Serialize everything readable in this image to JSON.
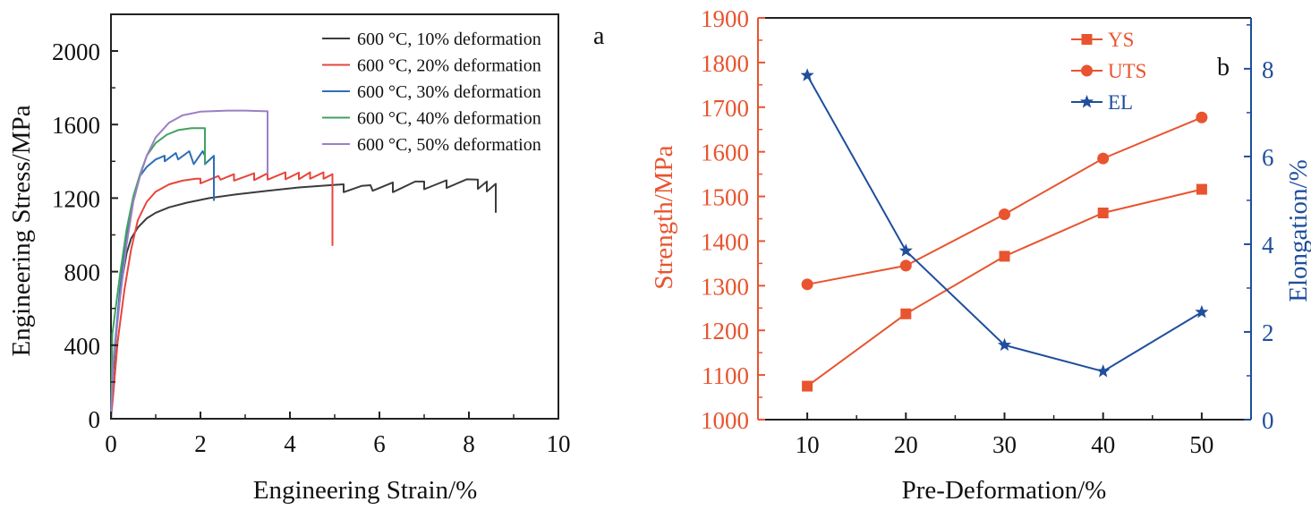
{
  "chart_data": [
    {
      "type": "line",
      "panel": "a",
      "title": "",
      "xlabel": "Engineering Strain/%",
      "ylabel": "Engineering Stress/MPa",
      "xlim": [
        0,
        10
      ],
      "ylim": [
        0,
        2200
      ],
      "xticks": [
        0,
        2,
        4,
        6,
        8,
        10
      ],
      "yticks": [
        0,
        400,
        800,
        1200,
        1600,
        2000
      ],
      "grid": false,
      "legend_position": "top-right",
      "series": [
        {
          "name": "600 °C, 10% deformation",
          "color": "#3c3c3c",
          "points": [
            [
              0,
              0
            ],
            [
              0.05,
              250
            ],
            [
              0.15,
              550
            ],
            [
              0.25,
              760
            ],
            [
              0.35,
              900
            ],
            [
              0.45,
              980
            ],
            [
              0.6,
              1040
            ],
            [
              0.8,
              1090
            ],
            [
              1.0,
              1120
            ],
            [
              1.3,
              1150
            ],
            [
              1.7,
              1175
            ],
            [
              2.2,
              1200
            ],
            [
              2.8,
              1220
            ],
            [
              3.5,
              1240
            ],
            [
              4.2,
              1258
            ],
            [
              5.0,
              1272
            ],
            [
              5.2,
              1275
            ],
            [
              5.2,
              1232
            ],
            [
              5.6,
              1266
            ],
            [
              5.8,
              1270
            ],
            [
              5.85,
              1240
            ],
            [
              6.3,
              1285
            ],
            [
              6.3,
              1232
            ],
            [
              6.8,
              1290
            ],
            [
              7.0,
              1290
            ],
            [
              7.0,
              1248
            ],
            [
              7.5,
              1297
            ],
            [
              7.5,
              1255
            ],
            [
              7.95,
              1302
            ],
            [
              8.2,
              1300
            ],
            [
              8.2,
              1250
            ],
            [
              8.4,
              1290
            ],
            [
              8.4,
              1236
            ],
            [
              8.6,
              1278
            ],
            [
              8.6,
              1120
            ]
          ]
        },
        {
          "name": "600 °C, 20% deformation",
          "color": "#e8453c",
          "points": [
            [
              0,
              0
            ],
            [
              0.05,
              130
            ],
            [
              0.15,
              420
            ],
            [
              0.3,
              700
            ],
            [
              0.45,
              920
            ],
            [
              0.6,
              1080
            ],
            [
              0.8,
              1180
            ],
            [
              1.0,
              1235
            ],
            [
              1.3,
              1275
            ],
            [
              1.6,
              1295
            ],
            [
              1.9,
              1305
            ],
            [
              2.0,
              1305
            ],
            [
              2.0,
              1280
            ],
            [
              2.4,
              1320
            ],
            [
              2.45,
              1300
            ],
            [
              2.75,
              1330
            ],
            [
              2.75,
              1295
            ],
            [
              3.2,
              1335
            ],
            [
              3.2,
              1298
            ],
            [
              3.5,
              1335
            ],
            [
              3.5,
              1300
            ],
            [
              3.9,
              1340
            ],
            [
              3.9,
              1302
            ],
            [
              4.2,
              1338
            ],
            [
              4.2,
              1302
            ],
            [
              4.45,
              1340
            ],
            [
              4.45,
              1305
            ],
            [
              4.75,
              1340
            ],
            [
              4.75,
              1305
            ],
            [
              4.95,
              1330
            ],
            [
              4.95,
              940
            ]
          ]
        },
        {
          "name": "600 °C, 30% deformation",
          "color": "#2e6fb5",
          "points": [
            [
              0,
              0
            ],
            [
              0.05,
              300
            ],
            [
              0.2,
              700
            ],
            [
              0.35,
              1000
            ],
            [
              0.5,
              1200
            ],
            [
              0.65,
              1320
            ],
            [
              0.8,
              1370
            ],
            [
              1.0,
              1410
            ],
            [
              1.2,
              1430
            ],
            [
              1.2,
              1400
            ],
            [
              1.45,
              1445
            ],
            [
              1.5,
              1410
            ],
            [
              1.75,
              1455
            ],
            [
              1.85,
              1385
            ],
            [
              2.05,
              1455
            ],
            [
              2.1,
              1430
            ],
            [
              2.1,
              1385
            ],
            [
              2.3,
              1430
            ],
            [
              2.3,
              1185
            ]
          ]
        },
        {
          "name": "600 °C, 40% deformation",
          "color": "#3fa35e",
          "points": [
            [
              0,
              0
            ],
            [
              0.03,
              460
            ],
            [
              0.2,
              780
            ],
            [
              0.35,
              1030
            ],
            [
              0.5,
              1210
            ],
            [
              0.65,
              1330
            ],
            [
              0.8,
              1430
            ],
            [
              1.0,
              1500
            ],
            [
              1.25,
              1545
            ],
            [
              1.5,
              1570
            ],
            [
              1.8,
              1580
            ],
            [
              2.1,
              1580
            ],
            [
              2.1,
              1380
            ]
          ]
        },
        {
          "name": "600 °C, 50% deformation",
          "color": "#9b7fc4",
          "points": [
            [
              0,
              0
            ],
            [
              0.05,
              300
            ],
            [
              0.2,
              650
            ],
            [
              0.35,
              950
            ],
            [
              0.5,
              1180
            ],
            [
              0.65,
              1320
            ],
            [
              0.8,
              1430
            ],
            [
              1.0,
              1530
            ],
            [
              1.3,
              1610
            ],
            [
              1.6,
              1650
            ],
            [
              2.0,
              1670
            ],
            [
              2.6,
              1676
            ],
            [
              3.0,
              1676
            ],
            [
              3.5,
              1672
            ],
            [
              3.5,
              1330
            ]
          ]
        }
      ]
    },
    {
      "type": "line",
      "panel": "b",
      "title": "",
      "xlabel": "Pre-Deformation/%",
      "ylabel": "Strength/MPa",
      "ylabel_right": "Elongation/%",
      "x": [
        10,
        20,
        30,
        40,
        50
      ],
      "xlim": [
        5,
        55
      ],
      "ylim": [
        1000,
        1900
      ],
      "ylim_right": [
        0,
        9.16
      ],
      "xticks": [
        10,
        20,
        30,
        40,
        50
      ],
      "yticks": [
        1000,
        1100,
        1200,
        1300,
        1400,
        1500,
        1600,
        1700,
        1800,
        1900
      ],
      "yticks_right": [
        0,
        2,
        4,
        6,
        8
      ],
      "grid": false,
      "legend_position": "top-right",
      "left_axis_color": "#e8542f",
      "right_axis_color": "#1f4e9c",
      "series": [
        {
          "name": "YS",
          "axis": "left",
          "marker": "square",
          "color": "#e8542f",
          "values": [
            1075,
            1237,
            1366,
            1463,
            1516
          ]
        },
        {
          "name": "UTS",
          "axis": "left",
          "marker": "circle",
          "color": "#e8542f",
          "values": [
            1303,
            1345,
            1460,
            1585,
            1677
          ]
        },
        {
          "name": "EL",
          "axis": "right",
          "marker": "star",
          "color": "#1f4e9c",
          "values": [
            7.85,
            3.85,
            1.7,
            1.1,
            2.45
          ]
        }
      ]
    }
  ],
  "labels": {
    "panel_a": "a",
    "panel_b": "b",
    "a_xlabel": "Engineering Strain/%",
    "a_ylabel": "Engineering Stress/MPa",
    "b_xlabel": "Pre-Deformation/%",
    "b_ylabel": "Strength/MPa",
    "b_ylabel_right": "Elongation/%"
  }
}
